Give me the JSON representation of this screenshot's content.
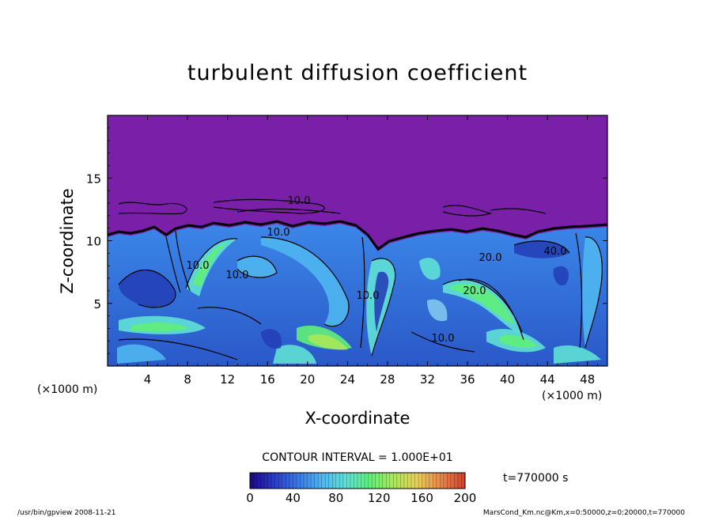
{
  "chart_data": {
    "type": "heatmap",
    "title": "turbulent diffusion coefficient",
    "xlabel": "X-coordinate",
    "ylabel": "Z-coordinate",
    "x_unit": "(×1000 m)",
    "x_unit_right": "(×1000 m)",
    "xlim": [
      0,
      50
    ],
    "ylim": [
      0,
      20
    ],
    "x_ticks": [
      4,
      8,
      12,
      16,
      20,
      24,
      28,
      32,
      36,
      40,
      44,
      48
    ],
    "y_ticks": [
      5,
      10,
      15
    ],
    "contour_interval_text": "CONTOUR INTERVAL = 1.000E+01",
    "contour_labels": [
      "10.0",
      "10.0",
      "20.0",
      "10.0",
      "10.0",
      "10.0",
      "20.0",
      "40.0",
      "10.0"
    ],
    "colorbar": {
      "min": 0,
      "max": 200,
      "ticks": [
        0,
        40,
        80,
        120,
        160,
        200
      ],
      "colors": [
        "#1a0a8c",
        "#2b3fc9",
        "#3a7be6",
        "#4fb6f0",
        "#5fe0d6",
        "#5ff07a",
        "#a8e85a",
        "#e8d25a",
        "#e88a4a",
        "#d2452e"
      ]
    },
    "time_text": "t=770000 s",
    "colors": {
      "background_top": "#7a1fa8",
      "turbulent_base": "#3d7be0"
    }
  },
  "footer": {
    "left": "/usr/bin/gpview  2008-11-21",
    "right": "MarsCond_Km.nc@Km,x=0:50000,z=0:20000,t=770000"
  }
}
